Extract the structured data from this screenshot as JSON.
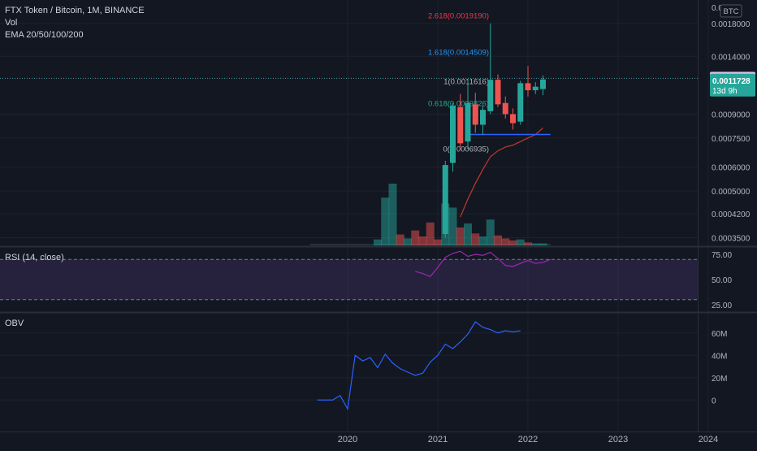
{
  "header": {
    "symbol_line": "FTX Token / Bitcoin, 1M, BINANCE",
    "vol_label": "Vol",
    "ema_label": "EMA 20/50/100/200"
  },
  "price_axis": {
    "currency": "BTC",
    "ticks": [
      {
        "label": "0.0018000",
        "value": 0.0018
      },
      {
        "label": "0.0014000",
        "value": 0.0014
      },
      {
        "label": "0.0009000",
        "value": 0.0009
      },
      {
        "label": "0.0007500",
        "value": 0.00075
      },
      {
        "label": "0.0006000",
        "value": 0.0006
      },
      {
        "label": "0.0005000",
        "value": 0.0005
      },
      {
        "label": "0.0004200",
        "value": 0.00042
      },
      {
        "label": "0.0003500",
        "value": 0.00035
      }
    ],
    "top_partial_label": "0.0",
    "last_price": "0.0011728",
    "countdown": "13d 9h",
    "prev_price_label": "0.0011836",
    "prev_price_value": 0.0011836,
    "log_scale": true
  },
  "time_axis": {
    "ticks": [
      {
        "label": "2020",
        "t": 0
      },
      {
        "label": "2021",
        "t": 12
      },
      {
        "label": "2022",
        "t": 24
      },
      {
        "label": "2023",
        "t": 36
      },
      {
        "label": "2024",
        "t": 48
      }
    ]
  },
  "fib_levels": [
    {
      "label": "2.618(0.0019190)",
      "color": "#f23645"
    },
    {
      "label": "1.618(0.0014509)",
      "color": "#2196f3"
    },
    {
      "label": "1(0.0011616)",
      "color": "#b2b5be"
    },
    {
      "label": "0.618(0.0009826)",
      "color": "#22ab94"
    },
    {
      "label": "0(0.0006935)",
      "color": "#b2b5be"
    }
  ],
  "rsi": {
    "label": "RSI (14, close)",
    "ticks": [
      {
        "label": "75.00",
        "value": 75
      },
      {
        "label": "50.00",
        "value": 50
      },
      {
        "label": "25.00",
        "value": 25
      }
    ],
    "upper": 70,
    "lower": 30,
    "series": [
      {
        "t": 9,
        "v": 58
      },
      {
        "t": 10,
        "v": 56
      },
      {
        "t": 11,
        "v": 53
      },
      {
        "t": 12,
        "v": 62
      },
      {
        "t": 13,
        "v": 72
      },
      {
        "t": 14,
        "v": 76
      },
      {
        "t": 15,
        "v": 78
      },
      {
        "t": 16,
        "v": 73
      },
      {
        "t": 17,
        "v": 75
      },
      {
        "t": 18,
        "v": 74
      },
      {
        "t": 19,
        "v": 77
      },
      {
        "t": 20,
        "v": 71
      },
      {
        "t": 21,
        "v": 64
      },
      {
        "t": 22,
        "v": 63
      },
      {
        "t": 23,
        "v": 66
      },
      {
        "t": 24,
        "v": 69
      },
      {
        "t": 25,
        "v": 66
      },
      {
        "t": 26,
        "v": 67
      },
      {
        "t": 27,
        "v": 70
      }
    ]
  },
  "obv": {
    "label": "OBV",
    "ticks": [
      {
        "label": "60M",
        "value": 60
      },
      {
        "label": "40M",
        "value": 40
      },
      {
        "label": "20M",
        "value": 20
      },
      {
        "label": "0",
        "value": 0
      }
    ]
  },
  "chart_data": {
    "type": "candlestick",
    "title": "FTX Token / Bitcoin, 1M, BINANCE",
    "x_unit": "months since Jan 2020",
    "scale": "log",
    "ylim": [
      0.00033,
      0.0021
    ],
    "candles": [
      {
        "t": 13,
        "o": 0.00036,
        "h": 0.00063,
        "l": 0.00035,
        "c": 0.00061
      },
      {
        "t": 14,
        "o": 0.00062,
        "h": 0.00098,
        "l": 0.00058,
        "c": 0.00096
      },
      {
        "t": 15,
        "o": 0.00095,
        "h": 0.00105,
        "l": 0.0007,
        "c": 0.00072
      },
      {
        "t": 16,
        "o": 0.00073,
        "h": 0.0011616,
        "l": 0.00069,
        "c": 0.00098
      },
      {
        "t": 17,
        "o": 0.00097,
        "h": 0.00106,
        "l": 0.00078,
        "c": 0.00083
      },
      {
        "t": 18,
        "o": 0.00083,
        "h": 0.00096,
        "l": 0.00077,
        "c": 0.00093
      },
      {
        "t": 19,
        "o": 0.00092,
        "h": 0.0018,
        "l": 0.0009,
        "c": 0.00117
      },
      {
        "t": 20,
        "o": 0.00117,
        "h": 0.00122,
        "l": 0.00095,
        "c": 0.00097
      },
      {
        "t": 21,
        "o": 0.00098,
        "h": 0.00103,
        "l": 0.00087,
        "c": 0.0009
      },
      {
        "t": 22,
        "o": 0.0009,
        "h": 0.00094,
        "l": 0.0008,
        "c": 0.00084
      },
      {
        "t": 23,
        "o": 0.00085,
        "h": 0.00116,
        "l": 0.00083,
        "c": 0.00114
      },
      {
        "t": 24,
        "o": 0.00114,
        "h": 0.0013,
        "l": 0.00103,
        "c": 0.00108
      },
      {
        "t": 25,
        "o": 0.00108,
        "h": 0.00115,
        "l": 0.00105,
        "c": 0.00111
      },
      {
        "t": 26,
        "o": 0.00109,
        "h": 0.00121,
        "l": 0.00104,
        "c": 0.001173
      }
    ],
    "volume": [
      {
        "t": 4,
        "v": 0.6,
        "up": true
      },
      {
        "t": 5,
        "v": 4.8,
        "up": true
      },
      {
        "t": 6,
        "v": 6.2,
        "up": true
      },
      {
        "t": 7,
        "v": 1.1,
        "up": false
      },
      {
        "t": 8,
        "v": 0.7,
        "up": true
      },
      {
        "t": 9,
        "v": 1.5,
        "up": false
      },
      {
        "t": 10,
        "v": 0.9,
        "up": false
      },
      {
        "t": 11,
        "v": 2.3,
        "up": false
      },
      {
        "t": 12,
        "v": 0.6,
        "up": false
      },
      {
        "t": 13,
        "v": 4.2,
        "up": true
      },
      {
        "t": 14,
        "v": 3.8,
        "up": true
      },
      {
        "t": 15,
        "v": 1.8,
        "up": false
      },
      {
        "t": 16,
        "v": 2.2,
        "up": true
      },
      {
        "t": 17,
        "v": 1.2,
        "up": false
      },
      {
        "t": 18,
        "v": 0.9,
        "up": true
      },
      {
        "t": 19,
        "v": 2.6,
        "up": true
      },
      {
        "t": 20,
        "v": 1.0,
        "up": false
      },
      {
        "t": 21,
        "v": 0.7,
        "up": false
      },
      {
        "t": 22,
        "v": 0.5,
        "up": false
      },
      {
        "t": 23,
        "v": 0.6,
        "up": true
      },
      {
        "t": 24,
        "v": 0.3,
        "up": false
      },
      {
        "t": 25,
        "v": 0.2,
        "up": true
      },
      {
        "t": 26,
        "v": 0.2,
        "up": true
      }
    ],
    "ema": [
      {
        "t": 15,
        "v": 0.00041
      },
      {
        "t": 16,
        "v": 0.00047
      },
      {
        "t": 17,
        "v": 0.00053
      },
      {
        "t": 18,
        "v": 0.00059
      },
      {
        "t": 19,
        "v": 0.00065
      },
      {
        "t": 20,
        "v": 0.00068
      },
      {
        "t": 21,
        "v": 0.0007
      },
      {
        "t": 22,
        "v": 0.00071
      },
      {
        "t": 23,
        "v": 0.00073
      },
      {
        "t": 24,
        "v": 0.00075
      },
      {
        "t": 25,
        "v": 0.00077
      },
      {
        "t": 26,
        "v": 0.00081
      }
    ],
    "support_line": {
      "from_t": 16,
      "to_t": 27,
      "value": 0.00077
    },
    "obv_series": [
      {
        "t": -4,
        "v": 0
      },
      {
        "t": -3,
        "v": 0
      },
      {
        "t": -2,
        "v": 0
      },
      {
        "t": -1,
        "v": 4
      },
      {
        "t": 0,
        "v": -8
      },
      {
        "t": 1,
        "v": 40
      },
      {
        "t": 2,
        "v": 35
      },
      {
        "t": 3,
        "v": 38
      },
      {
        "t": 4,
        "v": 29
      },
      {
        "t": 5,
        "v": 41
      },
      {
        "t": 6,
        "v": 33
      },
      {
        "t": 7,
        "v": 28
      },
      {
        "t": 8,
        "v": 25
      },
      {
        "t": 9,
        "v": 22
      },
      {
        "t": 10,
        "v": 24
      },
      {
        "t": 11,
        "v": 34
      },
      {
        "t": 12,
        "v": 40
      },
      {
        "t": 13,
        "v": 50
      },
      {
        "t": 14,
        "v": 46
      },
      {
        "t": 15,
        "v": 52
      },
      {
        "t": 16,
        "v": 59
      },
      {
        "t": 17,
        "v": 70
      },
      {
        "t": 18,
        "v": 65
      },
      {
        "t": 19,
        "v": 63
      },
      {
        "t": 20,
        "v": 60
      },
      {
        "t": 21,
        "v": 62
      },
      {
        "t": 22,
        "v": 61
      },
      {
        "t": 23,
        "v": 62
      }
    ]
  },
  "colors": {
    "background": "#131722",
    "up": "#26a69a",
    "down": "#ef5350",
    "grid": "#1e222d",
    "text": "#b2b5be",
    "rsi_line": "#9c27b0",
    "obv_line": "#2962ff",
    "ema_line": "#c0392b",
    "support_line": "#2962ff"
  }
}
